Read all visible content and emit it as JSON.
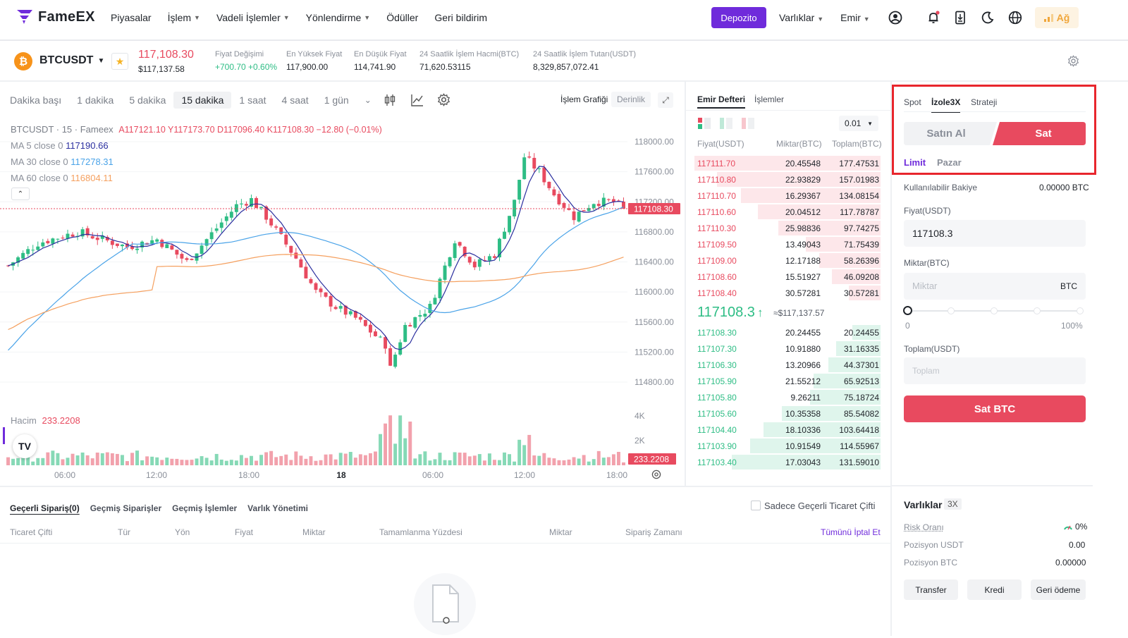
{
  "header": {
    "brand": "FameEX",
    "nav": [
      "Piyasalar",
      "İşlem",
      "Vadeli İşlemler",
      "Yönlendirme",
      "Ödüller",
      "Geri bildirim"
    ],
    "nav_has_caret": [
      false,
      true,
      true,
      true,
      false,
      false
    ],
    "deposit": "Depozito",
    "assets": "Varlıklar",
    "orders": "Emir",
    "network": "Ağ"
  },
  "ticker": {
    "symbol": "BTCUSDT",
    "price": "117,108.30",
    "price_usd": "$117,137.58",
    "stats": [
      {
        "label": "Fiyat Değişimi",
        "value": "+700.70 +0.60%"
      },
      {
        "label": "En Yüksek Fiyat",
        "value": "117,900.00"
      },
      {
        "label": "En Düşük Fiyat",
        "value": "114,741.90"
      },
      {
        "label": "24 Saatlik İşlem Hacmi(BTC)",
        "value": "71,620.53115"
      },
      {
        "label": "24 Saatlik İşlem Tutarı(USDT)",
        "value": "8,329,857,072.41"
      }
    ]
  },
  "chart": {
    "timeframes": [
      "Dakika başı",
      "1 dakika",
      "5 dakika",
      "15 dakika",
      "1 saat",
      "4 saat",
      "1 gün"
    ],
    "active_timeframe": "15 dakika",
    "view_chart": "İşlem Grafiği",
    "view_depth": "Derinlik",
    "title": "BTCUSDT · 15 · Fameex",
    "ohlc": "A117121.10  Y117173.70  D117096.40  K117108.30  −12.80 (−0.01%)",
    "ma5": {
      "label": "MA 5 close 0",
      "value": "117190.66",
      "color": "#2b2f9f"
    },
    "ma30": {
      "label": "MA 30 close 0",
      "value": "117278.31",
      "color": "#4aa3e8"
    },
    "ma60": {
      "label": "MA 60 close 0",
      "value": "116804.11",
      "color": "#f5a05f"
    },
    "price_axis": [
      "118000.00",
      "117600.00",
      "117200.00",
      "116800.00",
      "116400.00",
      "116000.00",
      "115600.00",
      "115200.00",
      "114800.00"
    ],
    "last_price_tag": "117108.30",
    "volume_label": "Hacim",
    "volume_value": "233.2208",
    "volume_axis": [
      "4K",
      "2K"
    ],
    "time_axis": [
      "06:00",
      "12:00",
      "18:00",
      "18",
      "06:00",
      "12:00",
      "18:00"
    ],
    "up_color": "#2ebd85",
    "down_color": "#e84a5f"
  },
  "chart_data": {
    "type": "candlestick",
    "title": "BTCUSDT · 15 · Fameex",
    "ylim": [
      114600,
      118200
    ],
    "y_ticks": [
      118000,
      117600,
      117200,
      116800,
      116400,
      116000,
      115600,
      115200,
      114800
    ],
    "last_price": 117108.3,
    "series": [
      {
        "name": "MA 5 close 0",
        "last": 117190.66
      },
      {
        "name": "MA 30 close 0",
        "last": 117278.31
      },
      {
        "name": "MA 60 close 0",
        "last": 116804.11
      }
    ],
    "volume_last": 233.2208
  },
  "orderbook": {
    "tab_book": "Emir Defteri",
    "tab_trades": "İşlemler",
    "precision": "0.01",
    "col_price": "Fiyat(USDT)",
    "col_qty": "Miktar(BTC)",
    "col_total": "Toplam(BTC)",
    "asks": [
      {
        "p": "117111.70",
        "q": "20.45548",
        "t": "177.47531",
        "d": 1.0
      },
      {
        "p": "117110.80",
        "q": "22.93829",
        "t": "157.01983",
        "d": 0.88
      },
      {
        "p": "117110.70",
        "q": "16.29367",
        "t": "134.08154",
        "d": 0.75
      },
      {
        "p": "117110.60",
        "q": "20.04512",
        "t": "117.78787",
        "d": 0.66
      },
      {
        "p": "117110.30",
        "q": "25.98836",
        "t": "97.74275",
        "d": 0.55
      },
      {
        "p": "117109.50",
        "q": "13.49043",
        "t": "71.75439",
        "d": 0.4
      },
      {
        "p": "117109.00",
        "q": "12.17188",
        "t": "58.26396",
        "d": 0.33
      },
      {
        "p": "117108.60",
        "q": "15.51927",
        "t": "46.09208",
        "d": 0.26
      },
      {
        "p": "117108.40",
        "q": "30.57281",
        "t": "30.57281",
        "d": 0.17
      }
    ],
    "mid_price": "117108.3",
    "mid_arrow": "↑",
    "mid_usd": "≈$117,137.57",
    "bids": [
      {
        "p": "117108.30",
        "q": "20.24455",
        "t": "20.24455",
        "d": 0.15
      },
      {
        "p": "117107.30",
        "q": "10.91880",
        "t": "31.16335",
        "d": 0.24
      },
      {
        "p": "117106.30",
        "q": "13.20966",
        "t": "44.37301",
        "d": 0.28
      },
      {
        "p": "117105.90",
        "q": "21.55212",
        "t": "65.92513",
        "d": 0.36
      },
      {
        "p": "117105.80",
        "q": "9.26211",
        "t": "75.18724",
        "d": 0.38
      },
      {
        "p": "117105.60",
        "q": "10.35358",
        "t": "85.54082",
        "d": 0.53
      },
      {
        "p": "117104.40",
        "q": "18.10336",
        "t": "103.64418",
        "d": 0.63
      },
      {
        "p": "117103.90",
        "q": "10.91549",
        "t": "114.55967",
        "d": 0.7
      },
      {
        "p": "117103.40",
        "q": "17.03043",
        "t": "131.59010",
        "d": 0.8
      }
    ]
  },
  "trade": {
    "tabs": [
      "Spot",
      "İzole3X",
      "Strateji"
    ],
    "active_tab": "İzole3X",
    "buy": "Satın Al",
    "sell": "Sat",
    "order_types": [
      "Limit",
      "Pazar"
    ],
    "balance_label": "Kullanılabilir Bakiye",
    "balance_value": "0.00000 BTC",
    "price_label": "Fiyat(USDT)",
    "price_value": "117108.3",
    "qty_label": "Miktar(BTC)",
    "qty_placeholder": "Miktar",
    "qty_unit": "BTC",
    "slider_min": "0",
    "slider_max": "100%",
    "slider_value": 0,
    "total_label": "Toplam(USDT)",
    "total_placeholder": "Toplam",
    "submit": "Sat BTC"
  },
  "assets": {
    "title": "Varlıklar",
    "badge": "3X",
    "rows": [
      {
        "label": "Risk Oranı",
        "value": "0%"
      },
      {
        "label": "Pozisyon USDT",
        "value": "0.00"
      },
      {
        "label": "Pozisyon BTC",
        "value": "0.00000"
      }
    ],
    "buttons": [
      "Transfer",
      "Kredi",
      "Geri ödeme"
    ]
  },
  "orders": {
    "tabs": [
      "Geçerli Sipariş(0)",
      "Geçmiş Siparişler",
      "Geçmiş İşlemler",
      "Varlık Yönetimi"
    ],
    "only_current": "Sadece Geçerli Ticaret Çifti",
    "columns": [
      "Ticaret Çifti",
      "Tür",
      "Yön",
      "Fiyat",
      "Miktar",
      "Tamamlanma Yüzdesi",
      "Miktar",
      "Sipariş Zamanı"
    ],
    "cancel_all": "Tümünü İptal Et"
  }
}
